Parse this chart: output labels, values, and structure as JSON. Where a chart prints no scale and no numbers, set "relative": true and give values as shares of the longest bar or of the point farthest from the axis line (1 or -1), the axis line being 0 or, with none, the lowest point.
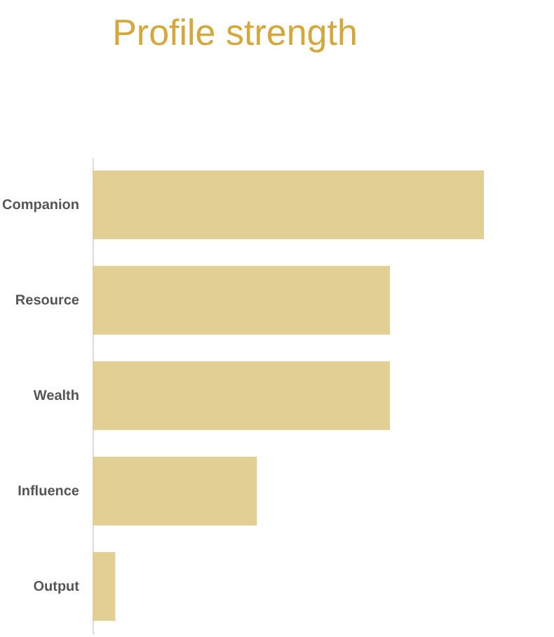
{
  "chart_data": {
    "type": "bar",
    "title": "Profile strength",
    "orientation": "horizontal",
    "relative": true,
    "categories": [
      "Companion",
      "Resource",
      "Wealth",
      "Influence",
      "Output"
    ],
    "values": [
      1,
      0.76,
      0.76,
      0.42,
      0.058
    ],
    "color": "#e2cf94"
  }
}
